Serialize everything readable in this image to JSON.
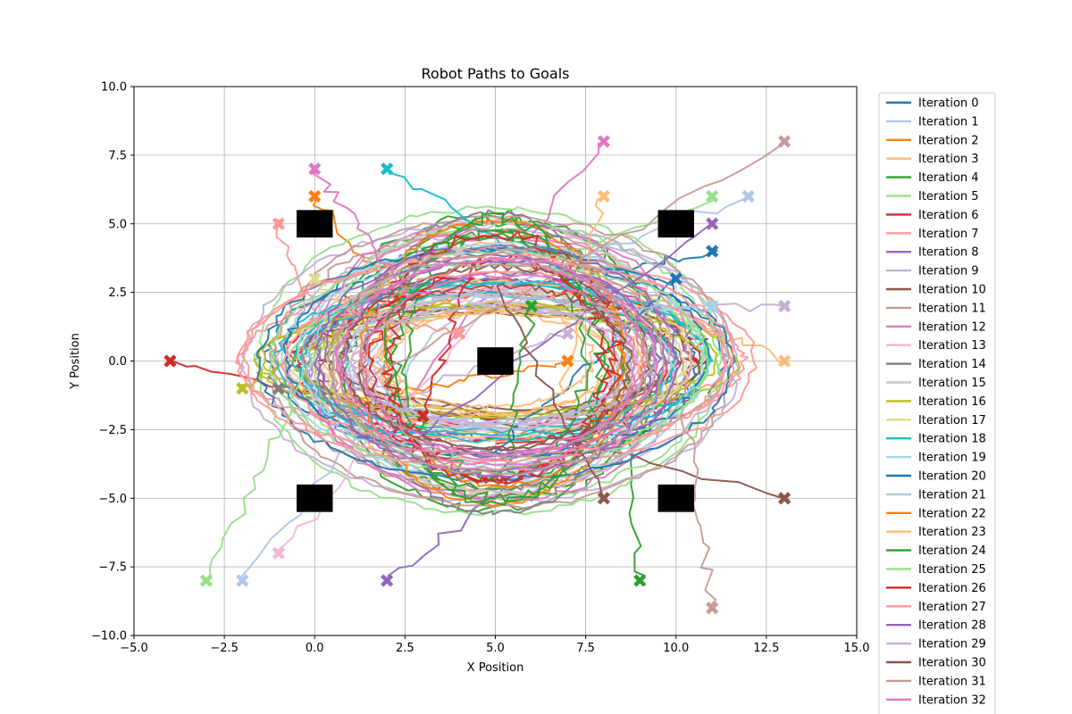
{
  "chart_data": {
    "type": "line",
    "title": "Robot Paths to Goals",
    "xlabel": "X Position",
    "ylabel": "Y Position",
    "xlim": [
      -5.0,
      15.0
    ],
    "ylim": [
      -10.0,
      10.0
    ],
    "x_ticks": [
      "−5.0",
      "−2.5",
      "0.0",
      "2.5",
      "5.0",
      "7.5",
      "10.0",
      "12.5",
      "15.0"
    ],
    "x_tick_values": [
      -5,
      -2.5,
      0,
      2.5,
      5,
      7.5,
      10,
      12.5,
      15
    ],
    "y_ticks": [
      "−10.0",
      "−7.5",
      "−5.0",
      "−2.5",
      "0.0",
      "2.5",
      "5.0",
      "7.5",
      "10.0"
    ],
    "y_tick_values": [
      -10,
      -7.5,
      -5,
      -2.5,
      0,
      2.5,
      5,
      7.5,
      10
    ],
    "grid": true,
    "legend_position": "outside right",
    "obstacles": [
      {
        "x": 0,
        "y": 5
      },
      {
        "x": 10,
        "y": 5
      },
      {
        "x": 5,
        "y": 0
      },
      {
        "x": 0,
        "y": -5
      },
      {
        "x": 10,
        "y": -5
      }
    ],
    "series": [
      {
        "name": "Iteration 0",
        "color": "#1f77b4",
        "goal": [
          11,
          4
        ]
      },
      {
        "name": "Iteration 1",
        "color": "#aec7e8",
        "goal": [
          -2,
          -8
        ]
      },
      {
        "name": "Iteration 2",
        "color": "#ff7f0e",
        "goal": [
          0,
          6
        ]
      },
      {
        "name": "Iteration 3",
        "color": "#ffbb78",
        "goal": [
          13,
          0
        ]
      },
      {
        "name": "Iteration 4",
        "color": "#2ca02c",
        "goal": [
          9,
          -8
        ]
      },
      {
        "name": "Iteration 5",
        "color": "#98df8a",
        "goal": [
          11,
          6
        ]
      },
      {
        "name": "Iteration 6",
        "color": "#d62728",
        "goal": [
          -4,
          0
        ]
      },
      {
        "name": "Iteration 7",
        "color": "#ff9896",
        "goal": [
          -1,
          5
        ]
      },
      {
        "name": "Iteration 8",
        "color": "#9467bd",
        "goal": [
          2,
          -8
        ]
      },
      {
        "name": "Iteration 9",
        "color": "#c5b0d5",
        "goal": [
          7,
          1
        ]
      },
      {
        "name": "Iteration 10",
        "color": "#8c564b",
        "goal": [
          13,
          -5
        ]
      },
      {
        "name": "Iteration 11",
        "color": "#c49c94",
        "goal": [
          11,
          -9
        ]
      },
      {
        "name": "Iteration 12",
        "color": "#e377c2",
        "goal": [
          8,
          8
        ]
      },
      {
        "name": "Iteration 13",
        "color": "#f7b6d2",
        "goal": [
          -1,
          -7
        ]
      },
      {
        "name": "Iteration 14",
        "color": "#7f7f7f",
        "goal": [
          -1,
          -1
        ]
      },
      {
        "name": "Iteration 15",
        "color": "#c7c7c7",
        "goal": [
          4,
          4
        ]
      },
      {
        "name": "Iteration 16",
        "color": "#bcbd22",
        "goal": [
          -2,
          -1
        ]
      },
      {
        "name": "Iteration 17",
        "color": "#dbdb8d",
        "goal": [
          0,
          3
        ]
      },
      {
        "name": "Iteration 18",
        "color": "#17becf",
        "goal": [
          2,
          7
        ]
      },
      {
        "name": "Iteration 19",
        "color": "#9edae5",
        "goal": [
          11,
          2
        ]
      },
      {
        "name": "Iteration 20",
        "color": "#1f77b4",
        "goal": [
          10,
          3
        ]
      },
      {
        "name": "Iteration 21",
        "color": "#aec7e8",
        "goal": [
          12,
          6
        ]
      },
      {
        "name": "Iteration 22",
        "color": "#ff7f0e",
        "goal": [
          7,
          0
        ]
      },
      {
        "name": "Iteration 23",
        "color": "#ffbb78",
        "goal": [
          8,
          6
        ]
      },
      {
        "name": "Iteration 24",
        "color": "#2ca02c",
        "goal": [
          6,
          2
        ]
      },
      {
        "name": "Iteration 25",
        "color": "#98df8a",
        "goal": [
          -3,
          -8
        ]
      },
      {
        "name": "Iteration 26",
        "color": "#d62728",
        "goal": [
          3,
          -2
        ]
      },
      {
        "name": "Iteration 27",
        "color": "#ff9896",
        "goal": [
          4,
          1
        ]
      },
      {
        "name": "Iteration 28",
        "color": "#9467bd",
        "goal": [
          11,
          5
        ]
      },
      {
        "name": "Iteration 29",
        "color": "#c5b0d5",
        "goal": [
          13,
          2
        ]
      },
      {
        "name": "Iteration 30",
        "color": "#8c564b",
        "goal": [
          8,
          -5
        ]
      },
      {
        "name": "Iteration 31",
        "color": "#c49c94",
        "goal": [
          13,
          8
        ]
      },
      {
        "name": "Iteration 32",
        "color": "#e377c2",
        "goal": [
          0,
          7
        ]
      }
    ]
  }
}
